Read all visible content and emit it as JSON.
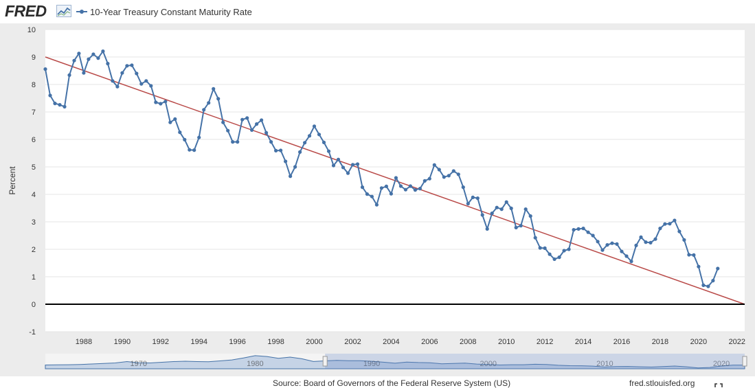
{
  "header": {
    "logo_text": "FRED",
    "legend_label": "10-Year Treasury Constant Maturity Rate"
  },
  "footer": {
    "source": "Source: Board of Governors of the Federal Reserve System (US)",
    "site": "fred.stlouisfed.org"
  },
  "colors": {
    "series": "#4572a7",
    "trend": "#b94a48",
    "zero_line": "#000000",
    "grid": "#e6e6e6",
    "plot_bg": "#ffffff",
    "page_bg": "#ececec",
    "navigator_fill": "#c5d3e6",
    "navigator_line": "#4572a7"
  },
  "icons": {
    "logo_graph": "line-graph-icon",
    "fullscreen": "fullscreen-icon"
  },
  "chart_data": {
    "type": "line",
    "title": "",
    "ylabel": "Percent",
    "xlabel": "",
    "xlim": [
      1986.0,
      2022.4
    ],
    "ylim": [
      -1,
      10
    ],
    "yticks": [
      -1,
      0,
      1,
      2,
      3,
      4,
      5,
      6,
      7,
      8,
      9,
      10
    ],
    "xticks": [
      1988,
      1990,
      1992,
      1994,
      1996,
      1998,
      2000,
      2002,
      2004,
      2006,
      2008,
      2010,
      2012,
      2014,
      2016,
      2018,
      2020,
      2022
    ],
    "grid": "horizontal",
    "legend": "top-left",
    "series": [
      {
        "name": "10-Year Treasury Constant Maturity Rate",
        "x": [
          1986.0,
          1986.25,
          1986.5,
          1986.75,
          1987.0,
          1987.25,
          1987.5,
          1987.75,
          1988.0,
          1988.25,
          1988.5,
          1988.75,
          1989.0,
          1989.25,
          1989.5,
          1989.75,
          1990.0,
          1990.25,
          1990.5,
          1990.75,
          1991.0,
          1991.25,
          1991.5,
          1991.75,
          1992.0,
          1992.25,
          1992.5,
          1992.75,
          1993.0,
          1993.25,
          1993.5,
          1993.75,
          1994.0,
          1994.25,
          1994.5,
          1994.75,
          1995.0,
          1995.25,
          1995.5,
          1995.75,
          1996.0,
          1996.25,
          1996.5,
          1996.75,
          1997.0,
          1997.25,
          1997.5,
          1997.75,
          1998.0,
          1998.25,
          1998.5,
          1998.75,
          1999.0,
          1999.25,
          1999.5,
          1999.75,
          2000.0,
          2000.25,
          2000.5,
          2000.75,
          2001.0,
          2001.25,
          2001.5,
          2001.75,
          2002.0,
          2002.25,
          2002.5,
          2002.75,
          2003.0,
          2003.25,
          2003.5,
          2003.75,
          2004.0,
          2004.25,
          2004.5,
          2004.75,
          2005.0,
          2005.25,
          2005.5,
          2005.75,
          2006.0,
          2006.25,
          2006.5,
          2006.75,
          2007.0,
          2007.25,
          2007.5,
          2007.75,
          2008.0,
          2008.25,
          2008.5,
          2008.75,
          2009.0,
          2009.25,
          2009.5,
          2009.75,
          2010.0,
          2010.25,
          2010.5,
          2010.75,
          2011.0,
          2011.25,
          2011.5,
          2011.75,
          2012.0,
          2012.25,
          2012.5,
          2012.75,
          2013.0,
          2013.25,
          2013.5,
          2013.75,
          2014.0,
          2014.25,
          2014.5,
          2014.75,
          2015.0,
          2015.25,
          2015.5,
          2015.75,
          2016.0,
          2016.25,
          2016.5,
          2016.75,
          2017.0,
          2017.25,
          2017.5,
          2017.75,
          2018.0,
          2018.25,
          2018.5,
          2018.75,
          2019.0,
          2019.25,
          2019.5,
          2019.75,
          2020.0,
          2020.25,
          2020.5,
          2020.75,
          2021.0
        ],
        "values": [
          8.56,
          7.6,
          7.31,
          7.26,
          7.19,
          8.34,
          8.87,
          9.13,
          8.42,
          8.92,
          9.1,
          8.96,
          9.21,
          8.76,
          8.13,
          7.92,
          8.42,
          8.68,
          8.7,
          8.4,
          8.02,
          8.13,
          7.95,
          7.35,
          7.3,
          7.38,
          6.62,
          6.74,
          6.26,
          5.99,
          5.62,
          5.61,
          6.07,
          7.08,
          7.33,
          7.84,
          7.48,
          6.62,
          6.32,
          5.91,
          5.91,
          6.72,
          6.78,
          6.34,
          6.56,
          6.7,
          6.24,
          5.91,
          5.59,
          5.6,
          5.2,
          4.66,
          5.0,
          5.54,
          5.88,
          6.13,
          6.48,
          6.18,
          5.89,
          5.57,
          5.05,
          5.27,
          4.98,
          4.77,
          5.08,
          5.1,
          4.26,
          4.01,
          3.92,
          3.62,
          4.23,
          4.29,
          4.02,
          4.6,
          4.3,
          4.17,
          4.3,
          4.16,
          4.21,
          4.49,
          4.57,
          5.07,
          4.9,
          4.63,
          4.68,
          4.85,
          4.73,
          4.26,
          3.66,
          3.89,
          3.86,
          3.25,
          2.74,
          3.31,
          3.52,
          3.46,
          3.72,
          3.49,
          2.79,
          2.86,
          3.46,
          3.21,
          2.42,
          2.05,
          2.04,
          1.82,
          1.64,
          1.71,
          1.95,
          2.0,
          2.71,
          2.74,
          2.76,
          2.62,
          2.5,
          2.28,
          1.97,
          2.16,
          2.22,
          2.19,
          1.92,
          1.75,
          1.56,
          2.14,
          2.44,
          2.26,
          2.24,
          2.37,
          2.76,
          2.92,
          2.93,
          3.05,
          2.65,
          2.34,
          1.8,
          1.79,
          1.37,
          0.69,
          0.65,
          0.86,
          1.3
        ]
      },
      {
        "name": "",
        "type": "trend",
        "x": [
          1986.0,
          2022.4
        ],
        "values": [
          9.0,
          0.0
        ]
      }
    ],
    "navigator": {
      "labels": [
        "1970",
        "1980",
        "1990",
        "2000",
        "2010",
        "2020"
      ],
      "xlim": [
        1962,
        2022
      ],
      "selected_range": [
        1986,
        2022
      ],
      "values": [
        4.0,
        4.2,
        4.3,
        4.6,
        5.1,
        5.6,
        6.2,
        7.6,
        6.4,
        6.2,
        6.9,
        7.6,
        8.0,
        7.6,
        7.4,
        8.4,
        9.4,
        11.4,
        13.9,
        13.0,
        11.1,
        12.4,
        10.6,
        7.7,
        8.4,
        8.9,
        8.5,
        8.6,
        7.9,
        7.0,
        5.9,
        7.1,
        6.6,
        6.4,
        5.3,
        5.6,
        6.0,
        5.0,
        4.6,
        4.0,
        4.3,
        4.3,
        4.8,
        4.6,
        3.7,
        3.3,
        3.2,
        2.8,
        1.8,
        2.4,
        2.5,
        2.1,
        1.8,
        2.3,
        2.9,
        2.1,
        0.9,
        1.4,
        2.9,
        3.9,
        3.9
      ]
    }
  }
}
